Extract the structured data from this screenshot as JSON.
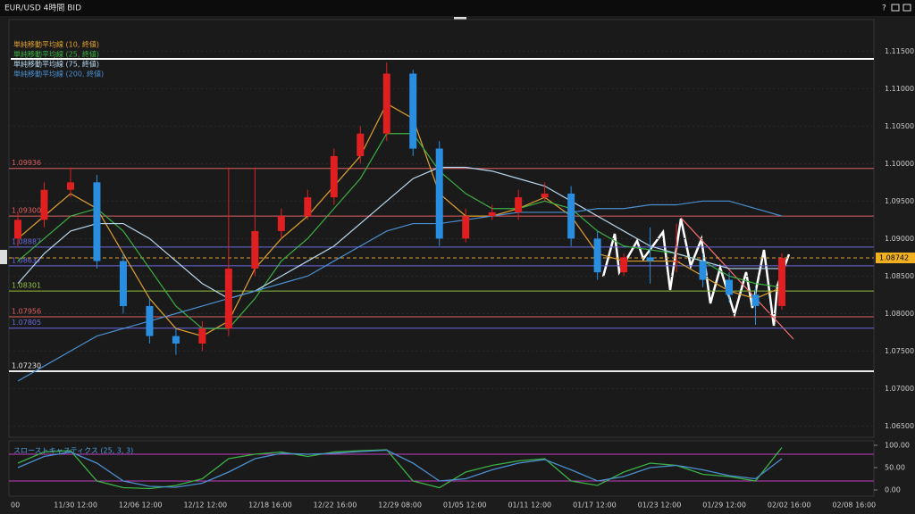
{
  "window_title": "EUR/USD 4時間 BID",
  "buttons": [
    "?"
  ],
  "chart_data": [
    {
      "type": "candlestick",
      "legend": [
        {
          "name": "単純移動平均線 (10, 終値)",
          "color": "#e0a030"
        },
        {
          "name": "単純移動平均線 (25, 終値)",
          "color": "#3cb043"
        },
        {
          "name": "単純移動平均線 (75, 終値)",
          "color": "#b8d8f0"
        },
        {
          "name": "単純移動平均線 (200, 終値)",
          "color": "#4a8fd0"
        }
      ],
      "x_labels": [
        "00",
        "11/30 12:00",
        "12/06 12:00",
        "12/12 12:00",
        "12/18 16:00",
        "12/22 16:00",
        "12/29 08:00",
        "01/05 12:00",
        "01/11 12:00",
        "01/17 12:00",
        "01/23 12:00",
        "01/29 12:00",
        "02/02 16:00",
        "02/08 16:00"
      ],
      "open": [
        1.09,
        1.0925,
        1.0965,
        1.0975,
        1.087,
        1.081,
        1.077,
        1.076,
        1.078,
        1.086,
        1.091,
        1.093,
        1.0955,
        1.101,
        1.104,
        1.112,
        1.102,
        1.09,
        1.093,
        1.0935,
        1.0955,
        1.096,
        1.09,
        1.0855,
        1.0875,
        1.087,
        1.087,
        1.0845,
        1.0825,
        1.081
      ],
      "high": [
        1.0935,
        1.0975,
        1.0995,
        1.0985,
        1.088,
        1.082,
        1.078,
        1.079,
        1.0995,
        1.0995,
        1.094,
        1.0965,
        1.102,
        1.105,
        1.1135,
        1.1125,
        1.103,
        1.094,
        1.0945,
        1.0965,
        1.0975,
        1.097,
        1.091,
        1.088,
        1.0915,
        1.092,
        1.088,
        1.0855,
        1.0835,
        1.088
      ],
      "low": [
        1.089,
        1.0915,
        1.0955,
        1.086,
        1.08,
        1.076,
        1.0745,
        1.075,
        1.077,
        1.085,
        1.09,
        1.0925,
        1.0945,
        1.1,
        1.103,
        1.101,
        1.089,
        1.0895,
        1.0925,
        1.0925,
        1.095,
        1.089,
        1.0845,
        1.085,
        1.084,
        1.0855,
        1.0835,
        1.0815,
        1.0785,
        1.0805
      ],
      "close": [
        1.0925,
        1.0965,
        1.0975,
        1.087,
        1.081,
        1.077,
        1.076,
        1.078,
        1.086,
        1.091,
        1.093,
        1.0955,
        1.101,
        1.104,
        1.112,
        1.102,
        1.09,
        1.093,
        1.0935,
        1.0955,
        1.096,
        1.09,
        1.0855,
        1.0875,
        1.087,
        1.087,
        1.0845,
        1.0825,
        1.081,
        1.0874
      ],
      "up_color": "#e02020",
      "down_color": "#2a8ee0",
      "series": [
        {
          "name": "SMA10",
          "color": "#e0a030",
          "values": [
            1.09,
            1.093,
            1.096,
            1.094,
            1.088,
            1.082,
            1.078,
            1.077,
            1.079,
            1.086,
            1.09,
            1.093,
            1.097,
            1.101,
            1.108,
            1.106,
            1.096,
            1.093,
            1.093,
            1.094,
            1.0955,
            1.093,
            1.088,
            1.087,
            1.087,
            1.087,
            1.085,
            1.083,
            1.082,
            1.0835
          ]
        },
        {
          "name": "SMA25",
          "color": "#3cb043",
          "values": [
            1.087,
            1.09,
            1.093,
            1.094,
            1.091,
            1.086,
            1.081,
            1.078,
            1.078,
            1.082,
            1.087,
            1.09,
            1.094,
            1.098,
            1.104,
            1.104,
            1.099,
            1.096,
            1.094,
            1.094,
            1.095,
            1.094,
            1.091,
            1.089,
            1.0885,
            1.088,
            1.087,
            1.085,
            1.084,
            1.0835
          ]
        },
        {
          "name": "SMA75",
          "color": "#b8d8f0",
          "values": [
            1.084,
            1.088,
            1.091,
            1.092,
            1.092,
            1.09,
            1.087,
            1.084,
            1.082,
            1.083,
            1.085,
            1.087,
            1.089,
            1.092,
            1.095,
            1.098,
            1.0995,
            1.0995,
            1.099,
            1.098,
            1.097,
            1.095,
            1.093,
            1.091,
            1.089,
            1.088,
            1.087,
            1.086,
            1.086,
            1.086
          ]
        },
        {
          "name": "SMA200",
          "color": "#4a8fd0",
          "values": [
            1.071,
            1.073,
            1.075,
            1.077,
            1.078,
            1.079,
            1.08,
            1.081,
            1.082,
            1.083,
            1.084,
            1.085,
            1.087,
            1.089,
            1.091,
            1.092,
            1.092,
            1.0925,
            1.093,
            1.0935,
            1.0935,
            1.0935,
            1.094,
            1.094,
            1.0945,
            1.0945,
            1.095,
            1.095,
            1.094,
            1.093
          ]
        }
      ],
      "levels": [
        {
          "value": 1.09936,
          "label": "1.09936",
          "color": "#e06060"
        },
        {
          "value": 1.093,
          "label": "1.09300",
          "color": "#e06060"
        },
        {
          "value": 1.08887,
          "label": "1.08887",
          "color": "#6a6ae0"
        },
        {
          "value": 1.08637,
          "label": "1.08637",
          "color": "#6a6ae0"
        },
        {
          "value": 1.08301,
          "label": "1.08301",
          "color": "#90c040"
        },
        {
          "value": 1.07956,
          "label": "1.07956",
          "color": "#e06060"
        },
        {
          "value": 1.07805,
          "label": "1.07805",
          "color": "#6a6ae0"
        },
        {
          "value": 1.0723,
          "label": "1.07230",
          "color": "#e8e8e8"
        }
      ],
      "price_label": {
        "value": 1.08742,
        "label": "1.08742"
      },
      "ylim": [
        1.0635,
        1.1192
      ],
      "yticks": [
        {
          "value": 1.115,
          "label": "1.11500"
        },
        {
          "value": 1.11,
          "label": "1.11000"
        },
        {
          "value": 1.105,
          "label": "1.10500"
        },
        {
          "value": 1.1,
          "label": "1.10000"
        },
        {
          "value": 1.095,
          "label": "1.09500"
        },
        {
          "value": 1.09,
          "label": "1.09000"
        },
        {
          "value": 1.085,
          "label": "1.08500"
        },
        {
          "value": 1.08,
          "label": "1.08000"
        },
        {
          "value": 1.075,
          "label": "1.07500"
        },
        {
          "value": 1.07,
          "label": "1.07000"
        },
        {
          "value": 1.065,
          "label": "1.06500"
        }
      ]
    },
    {
      "type": "line",
      "title": "スローストキャスティクス (25, 3, 3)",
      "series": [
        {
          "name": "%K",
          "color": "#3cb043",
          "values": [
            60,
            85,
            88,
            20,
            5,
            3,
            10,
            25,
            70,
            80,
            85,
            75,
            85,
            88,
            90,
            20,
            5,
            40,
            55,
            65,
            70,
            20,
            10,
            40,
            60,
            55,
            35,
            30,
            20,
            95
          ]
        },
        {
          "name": "%D",
          "color": "#4a8fd0",
          "values": [
            50,
            75,
            85,
            60,
            20,
            8,
            6,
            15,
            40,
            70,
            82,
            80,
            82,
            86,
            89,
            60,
            20,
            25,
            45,
            60,
            68,
            45,
            20,
            30,
            50,
            55,
            45,
            32,
            25,
            70
          ]
        }
      ],
      "bands": [
        80,
        20
      ],
      "ylim": [
        -12,
        108
      ],
      "yticks": [
        {
          "value": 100,
          "label": "100.00"
        },
        {
          "value": 50,
          "label": "50.00"
        },
        {
          "value": 0,
          "label": "0.00"
        }
      ]
    }
  ]
}
